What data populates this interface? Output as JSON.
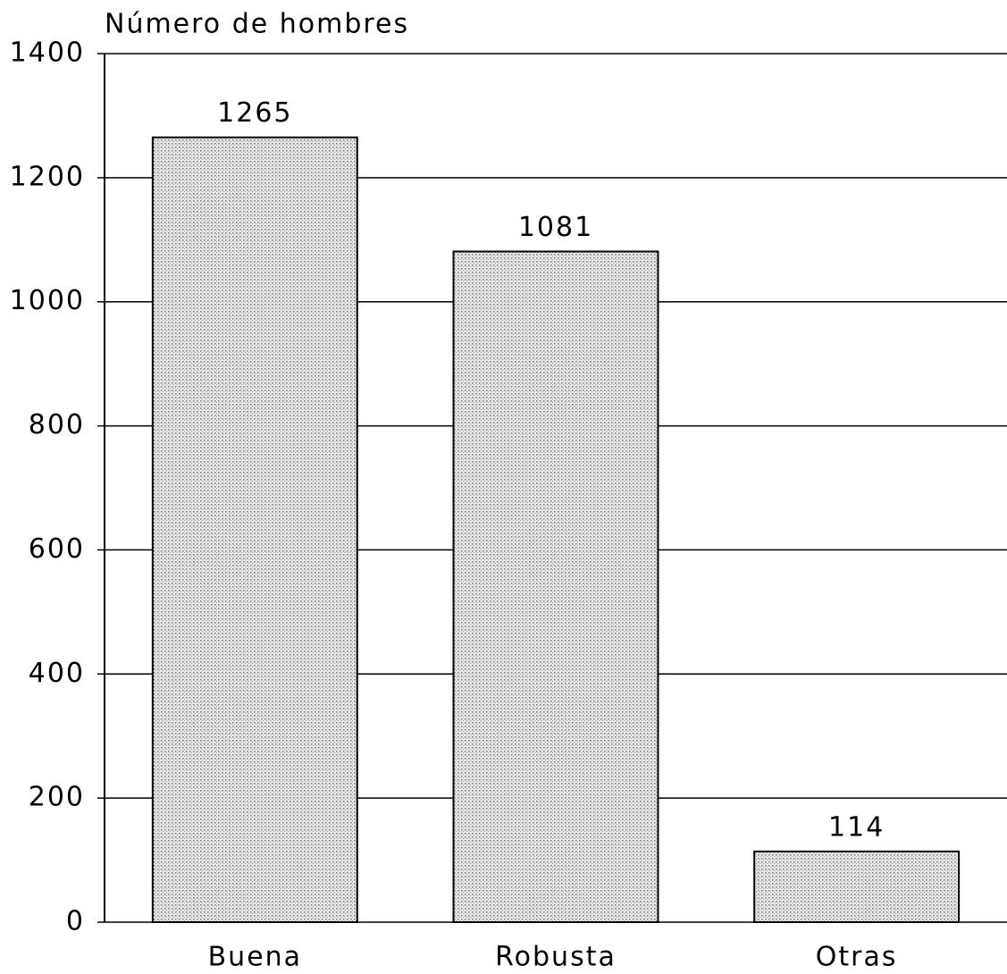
{
  "chart_data": {
    "type": "bar",
    "y_label": "Número de hombres",
    "categories": [
      "Buena",
      "Robusta",
      "Otras"
    ],
    "values": [
      1265,
      1081,
      114
    ],
    "color": "#d4d4d4",
    "ylim": [
      0,
      1400
    ],
    "yticks": [
      0,
      200,
      400,
      600,
      800,
      1000,
      1200,
      1400
    ],
    "grid": true
  }
}
